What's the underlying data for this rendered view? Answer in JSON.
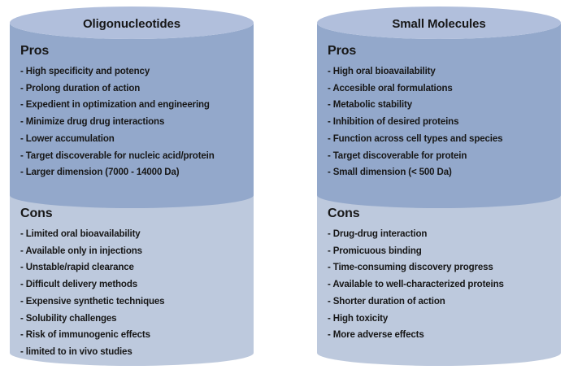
{
  "colors": {
    "background": "#ffffff",
    "top_face": "#b1bfdc",
    "pros_bg": "#93a8cb",
    "cons_bg": "#bdc9dd",
    "text": "#171717"
  },
  "columns": [
    {
      "title": "Oligonucleotides",
      "pros_label": "Pros",
      "pros": [
        "- High specificity and potency",
        "- Prolong duration of action",
        "- Expedient in optimization and engineering",
        "- Minimize drug drug interactions",
        "- Lower accumulation",
        "- Target discoverable for nucleic acid/protein",
        "- Larger dimension (7000 - 14000 Da)"
      ],
      "cons_label": "Cons",
      "cons": [
        "- Limited oral bioavailability",
        "- Available only in injections",
        "- Unstable/rapid clearance",
        "- Difficult delivery methods",
        "- Expensive synthetic techniques",
        "- Solubility challenges",
        "- Risk of immunogenic effects",
        "- limited to in vivo studies"
      ]
    },
    {
      "title": "Small Molecules",
      "pros_label": "Pros",
      "pros": [
        "- High oral bioavailability",
        "- Accesible oral formulations",
        "- Metabolic stability",
        "- Inhibition of desired proteins",
        "- Function across cell types and species",
        "- Target discoverable for protein",
        "- Small dimension (< 500 Da)"
      ],
      "cons_label": "Cons",
      "cons": [
        "- Drug-drug interaction",
        "- Promicuous binding",
        "- Time-consuming discovery progress",
        "- Available to well-characterized proteins",
        "- Shorter duration of action",
        "- High toxicity",
        "- More adverse effects"
      ]
    }
  ]
}
